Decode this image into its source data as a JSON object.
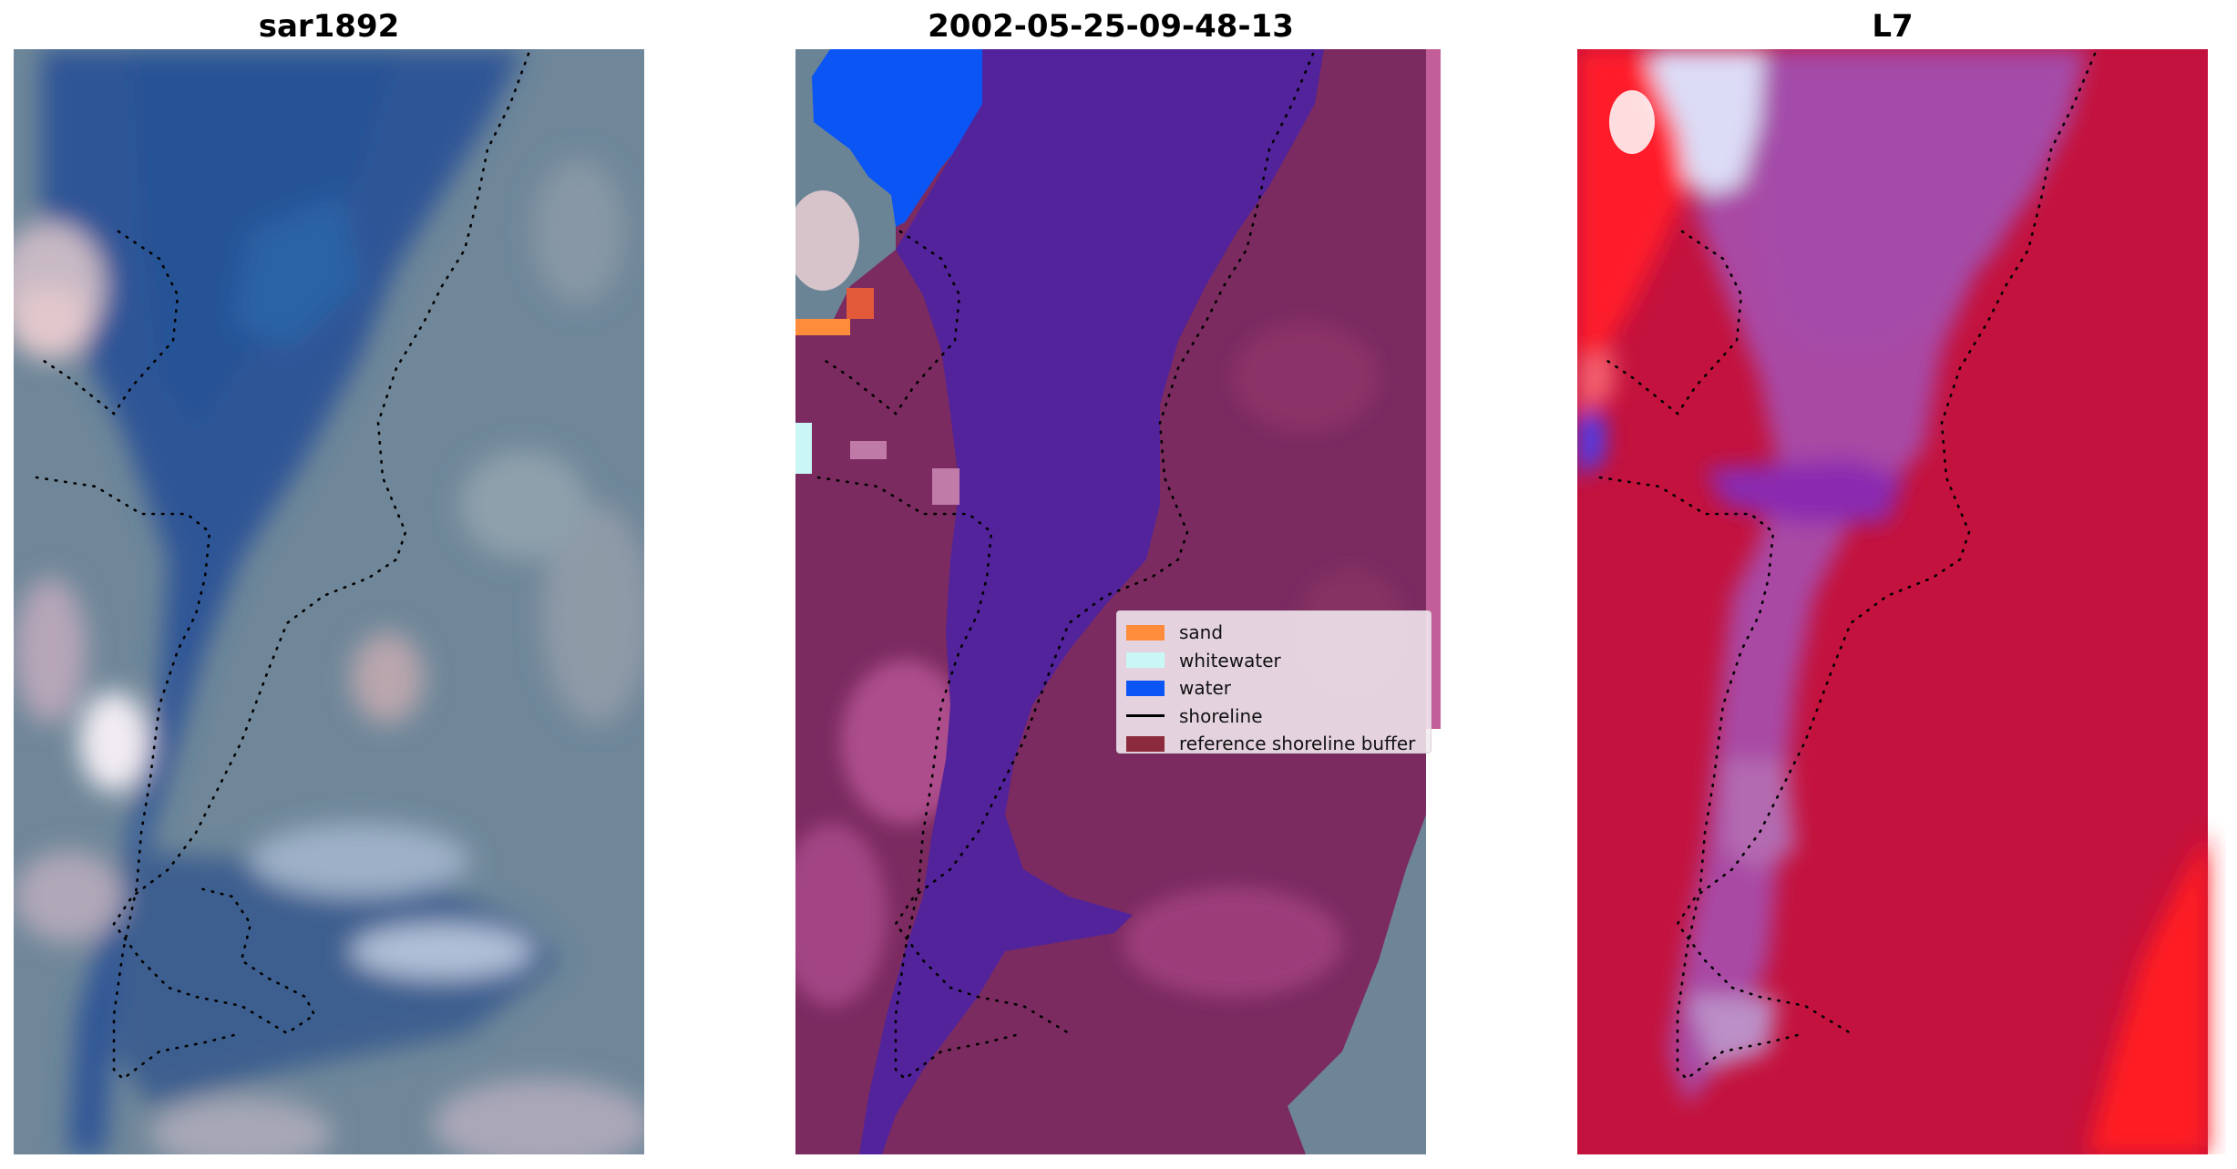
{
  "panels": [
    {
      "title": "sar1892",
      "kind": "rgb-image"
    },
    {
      "title": "2002-05-25-09-48-13",
      "kind": "classified-image"
    },
    {
      "title": "L7",
      "kind": "mndwi-image"
    }
  ],
  "legend": {
    "items": [
      {
        "label": "sand",
        "color": "#ff8c3b",
        "type": "patch"
      },
      {
        "label": "whitewater",
        "color": "#c8f7f5",
        "type": "patch"
      },
      {
        "label": "water",
        "color": "#0b55f5",
        "type": "patch"
      },
      {
        "label": "shoreline",
        "color": "#000000",
        "type": "line"
      },
      {
        "label": "reference shoreline buffer",
        "color": "#8b2a3a",
        "type": "patch"
      }
    ]
  },
  "colors": {
    "rgb_water": "#2f579a",
    "rgb_land": "#6b859a",
    "class_water_channel": "#52239a",
    "class_land": "#7e2a62",
    "class_water": "#0b55f5",
    "class_sand": "#ff8c3b",
    "class_whitewater": "#c8f7f5",
    "mndwi_high": "#c2103a",
    "mndwi_mid": "#a44aa6",
    "mndwi_low": "#ff2020",
    "mndwi_white": "#ecebfa"
  }
}
